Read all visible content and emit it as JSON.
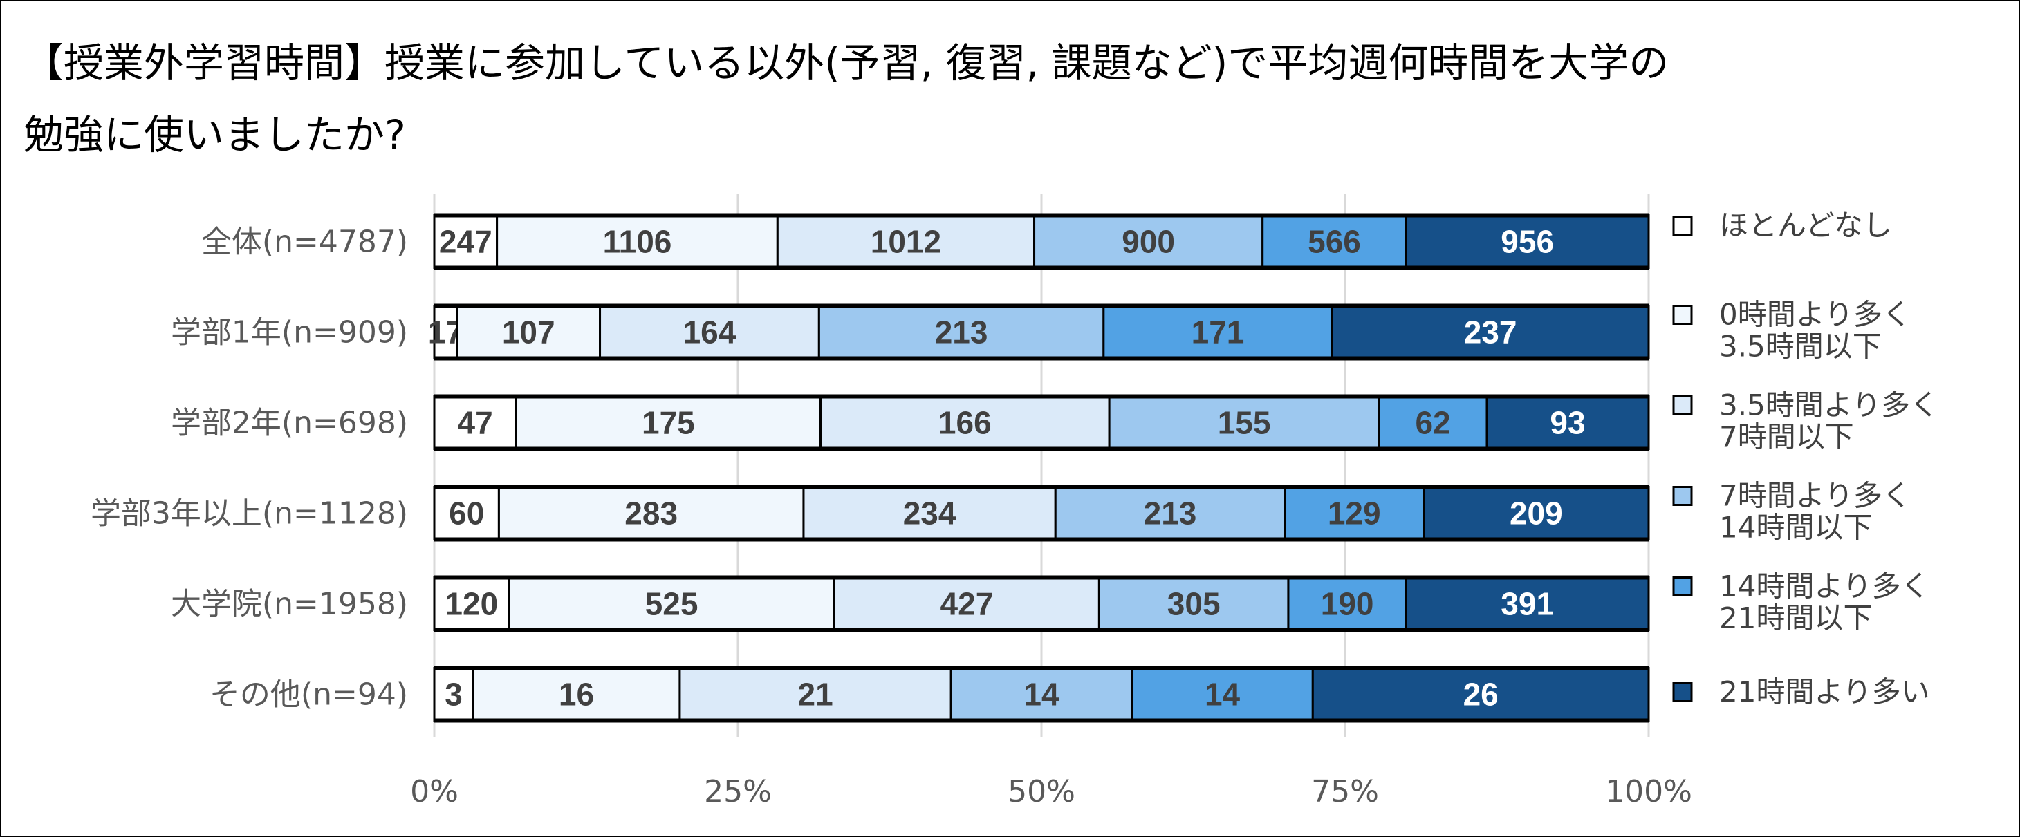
{
  "chart_data": {
    "type": "bar",
    "orientation": "horizontal",
    "stacked": "percent",
    "title_line1": "【授業外学習時間】授業に参加している以外(予習, 復習, 課題など)で平均週何時間を大学の",
    "title_line2": "勉強に使いましたか?",
    "categories": [
      "全体(n=4787)",
      "学部1年(n=909)",
      "学部2年(n=698)",
      "学部3年以上(n=1128)",
      "大学院(n=1958)",
      "その他(n=94)"
    ],
    "series": [
      {
        "name": "ほとんどなし",
        "name_lines": [
          "ほとんどなし"
        ],
        "color": "#ffffff",
        "label_color": "#404040",
        "values": [
          247,
          17,
          47,
          60,
          120,
          3
        ]
      },
      {
        "name": "0時間より多く3.5時間以下",
        "name_lines": [
          "0時間より多く",
          "3.5時間以下"
        ],
        "color": "#f0f7fd",
        "label_color": "#404040",
        "values": [
          1106,
          107,
          175,
          283,
          525,
          16
        ]
      },
      {
        "name": "3.5時間より多く7時間以下",
        "name_lines": [
          "3.5時間より多く",
          "7時間以下"
        ],
        "color": "#dbeaf9",
        "label_color": "#404040",
        "values": [
          1012,
          164,
          166,
          234,
          427,
          21
        ]
      },
      {
        "name": "7時間より多く14時間以下",
        "name_lines": [
          "7時間より多く",
          "14時間以下"
        ],
        "color": "#9dc8ef",
        "label_color": "#404040",
        "values": [
          900,
          213,
          155,
          213,
          305,
          14
        ]
      },
      {
        "name": "14時間より多く21時間以下",
        "name_lines": [
          "14時間より多く",
          "21時間以下"
        ],
        "color": "#52a2e4",
        "label_color": "#404040",
        "values": [
          566,
          171,
          62,
          129,
          190,
          14
        ]
      },
      {
        "name": "21時間より多い",
        "name_lines": [
          "21時間より多い"
        ],
        "color": "#165089",
        "label_color": "#ffffff",
        "values": [
          956,
          237,
          93,
          209,
          391,
          26
        ]
      }
    ],
    "xticks": [
      "0%",
      "25%",
      "50%",
      "75%",
      "100%"
    ],
    "xlim": [
      0,
      100
    ],
    "grid": true,
    "legend_position": "right"
  }
}
